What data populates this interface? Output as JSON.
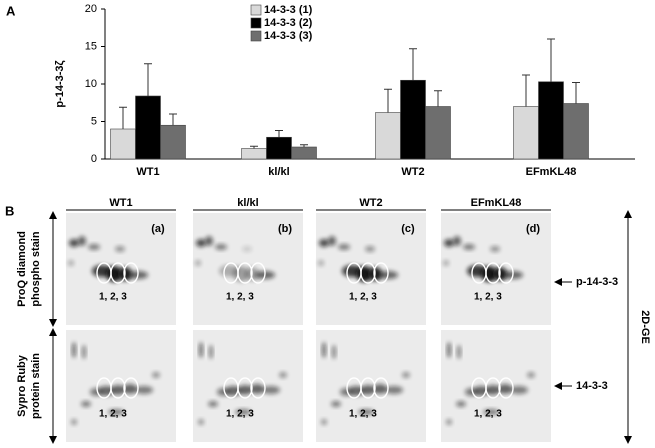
{
  "panel_a_label": "A",
  "chart_data": {
    "type": "bar",
    "ylabel": "p-14-3-3ζ",
    "categories": [
      "WT1",
      "kl/kl",
      "WT2",
      "EFmKL48"
    ],
    "series": [
      {
        "name": "14-3-3 (1)",
        "color": "#d9d9d9",
        "values": [
          4.0,
          1.4,
          6.2,
          7.0
        ],
        "errors": [
          2.9,
          0.3,
          3.1,
          4.2
        ]
      },
      {
        "name": "14-3-3 (2)",
        "color": "#000000",
        "values": [
          8.4,
          2.9,
          10.5,
          10.3
        ],
        "errors": [
          4.3,
          0.9,
          4.2,
          5.7
        ]
      },
      {
        "name": "14-3-3 (3)",
        "color": "#6e6e6e",
        "values": [
          4.5,
          1.6,
          7.0,
          7.4
        ],
        "errors": [
          1.5,
          0.3,
          2.1,
          2.8
        ]
      }
    ],
    "ylim": [
      0,
      20
    ],
    "yticks": [
      0,
      5,
      10,
      15,
      20
    ],
    "grid": false
  },
  "panel_b": {
    "label": "B",
    "columns": [
      "WT1",
      "kl/kl",
      "WT2",
      "EFmKL48"
    ],
    "panel_letters": [
      "(a)",
      "(b)",
      "(c)",
      "(d)"
    ],
    "rows": [
      {
        "label": [
          "ProQ diamond",
          "phospho stain"
        ],
        "spot_numbers": "1,  2,  3",
        "marker": "p-14-3-3"
      },
      {
        "label": [
          "Sypro Ruby",
          "protein stain"
        ],
        "spot_numbers": "1,  2,  3",
        "marker": "14-3-3"
      }
    ],
    "side_label": "2D-GE"
  }
}
